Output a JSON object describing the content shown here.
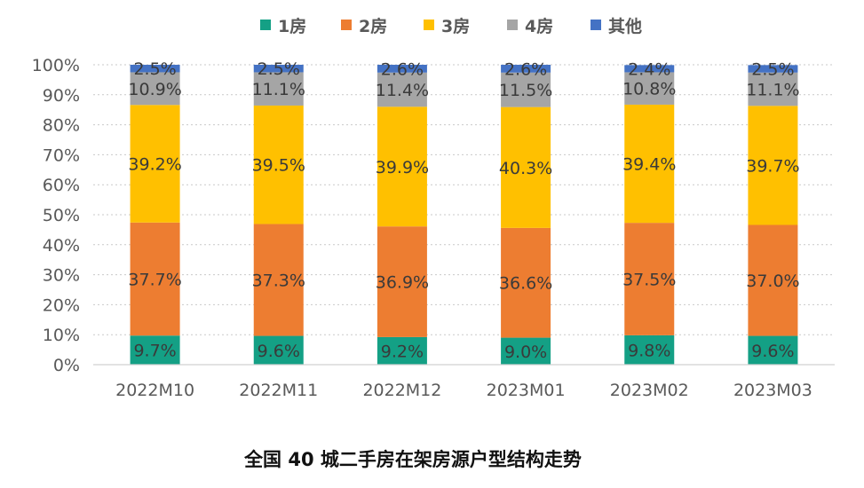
{
  "caption": "全国 40 城二手房在架房源户型结构走势",
  "chart_data": {
    "type": "bar",
    "stacked": true,
    "percent": true,
    "categories": [
      "2022M10",
      "2022M11",
      "2022M12",
      "2023M01",
      "2023M02",
      "2023M03"
    ],
    "series": [
      {
        "name": "1房",
        "color": "#14a085",
        "values": [
          9.7,
          9.6,
          9.2,
          9.0,
          9.8,
          9.6
        ],
        "labels": [
          "9.7%",
          "9.6%",
          "9.2%",
          "9.0%",
          "9.8%",
          "9.6%"
        ]
      },
      {
        "name": "2房",
        "color": "#ed7d31",
        "values": [
          37.7,
          37.3,
          36.9,
          36.6,
          37.5,
          37.0
        ],
        "labels": [
          "37.7%",
          "37.3%",
          "36.9%",
          "36.6%",
          "37.5%",
          "37.0%"
        ]
      },
      {
        "name": "3房",
        "color": "#ffc000",
        "values": [
          39.2,
          39.5,
          39.9,
          40.3,
          39.4,
          39.7
        ],
        "labels": [
          "39.2%",
          "39.5%",
          "39.9%",
          "40.3%",
          "39.4%",
          "39.7%"
        ]
      },
      {
        "name": "4房",
        "color": "#a5a5a5",
        "values": [
          10.9,
          11.1,
          11.4,
          11.5,
          10.8,
          11.1
        ],
        "labels": [
          "10.9%",
          "11.1%",
          "11.4%",
          "11.5%",
          "10.8%",
          "11.1%"
        ]
      },
      {
        "name": "其他",
        "color": "#4472c4",
        "values": [
          2.5,
          2.5,
          2.6,
          2.6,
          2.4,
          2.5
        ],
        "labels": [
          "2.5%",
          "2.5%",
          "2.6%",
          "2.6%",
          "2.4%",
          "2.5%"
        ]
      }
    ],
    "yticks": [
      "0%",
      "10%",
      "20%",
      "30%",
      "40%",
      "50%",
      "60%",
      "70%",
      "80%",
      "90%",
      "100%"
    ],
    "ylim": [
      0,
      100
    ],
    "grid": true,
    "legend_position": "top"
  }
}
